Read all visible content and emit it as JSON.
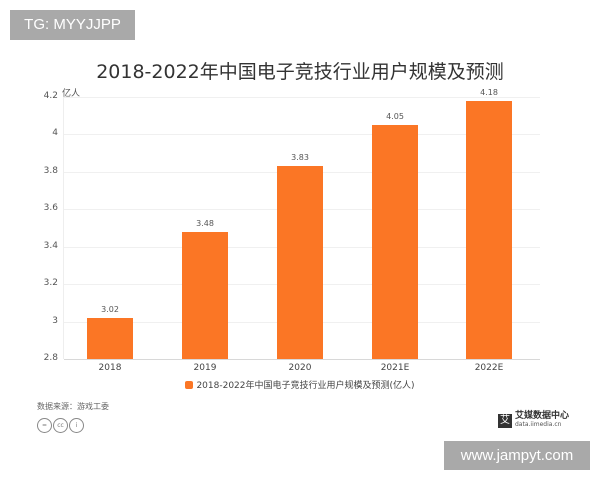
{
  "watermarks": {
    "top": "TG: MYYJJPP",
    "bottom": "www.jampyt.com"
  },
  "chart_data": {
    "type": "bar",
    "title": "2018-2022年中国电子竞技行业用户规模及预测",
    "xlabel": "",
    "ylabel": "亿人",
    "unit_label": "亿人",
    "categories": [
      "2018",
      "2019",
      "2020",
      "2021E",
      "2022E"
    ],
    "series": [
      {
        "name": "2018-2022年中国电子竞技行业用户规模及预测(亿人)",
        "values": [
          3.02,
          3.48,
          3.83,
          4.05,
          4.18
        ],
        "value_labels": [
          "3.02",
          "3.48",
          "3.83",
          "4.05",
          "4.18"
        ],
        "color": "#fb7625"
      }
    ],
    "ylim": [
      2.8,
      4.2
    ],
    "yticks": [
      "4.2",
      "4",
      "3.8",
      "3.6",
      "3.4",
      "3.2",
      "3",
      "2.8"
    ],
    "grid": true,
    "legend_position": "bottom"
  },
  "footer": {
    "source": "数据来源：游戏工委",
    "cc_icons": [
      "=",
      "cc",
      "i"
    ],
    "logo_main": "艾媒数据中心",
    "logo_sub": "data.iimedia.cn",
    "logo_glyph": "艾"
  }
}
